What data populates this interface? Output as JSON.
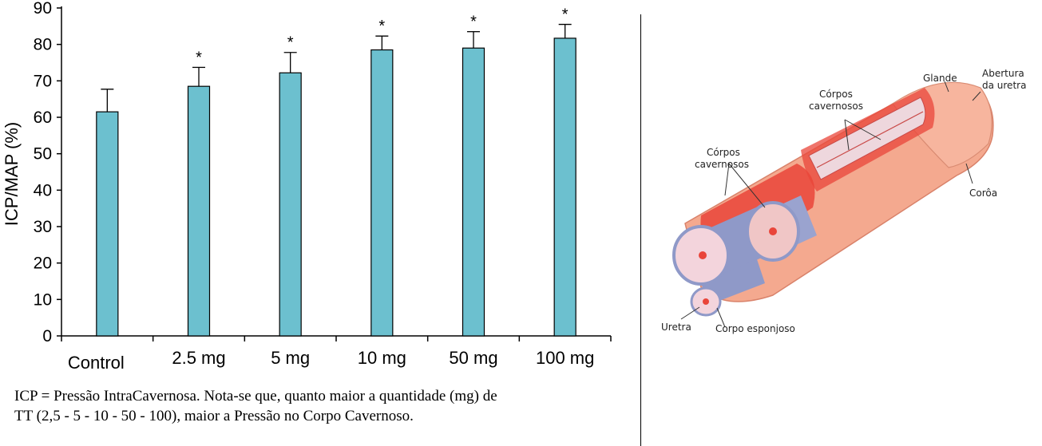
{
  "chart_data": {
    "type": "bar",
    "categories": [
      "Control",
      "2.5 mg",
      "5 mg",
      "10 mg",
      "50 mg",
      "100 mg"
    ],
    "values": [
      61.5,
      68.5,
      72.2,
      78.5,
      79,
      81.7
    ],
    "errors": [
      6.2,
      5.2,
      5.6,
      3.8,
      4.5,
      3.8
    ],
    "significance": [
      "",
      "*",
      "*",
      "*",
      "*",
      "*"
    ],
    "ylabel": "ICP/MAP (%)",
    "xlabel": "",
    "title": "",
    "ylim": [
      0,
      90
    ],
    "yticks": [
      0,
      10,
      20,
      30,
      40,
      50,
      60,
      70,
      80,
      90
    ],
    "bar_color": "#6cc0cf"
  },
  "caption": {
    "line1": "ICP = Pressão IntraCavernosa. Nota-se que, quanto maior a quantidade (mg) de",
    "line2": "TT (2,5 - 5 - 10 - 50 - 100), maior a Pressão no Corpo Cavernoso."
  },
  "illustration": {
    "labels": {
      "glande": "Glande",
      "abertura1": "Abertura",
      "abertura2": "da uretra",
      "corpos_top1": "Córpos",
      "corpos_top2": "cavernosos",
      "corpos_left1": "Córpos",
      "corpos_left2": "cavernosos",
      "coroa": "Corôa",
      "uretra": "Uretra",
      "esponjoso": "Corpo esponjoso"
    }
  }
}
